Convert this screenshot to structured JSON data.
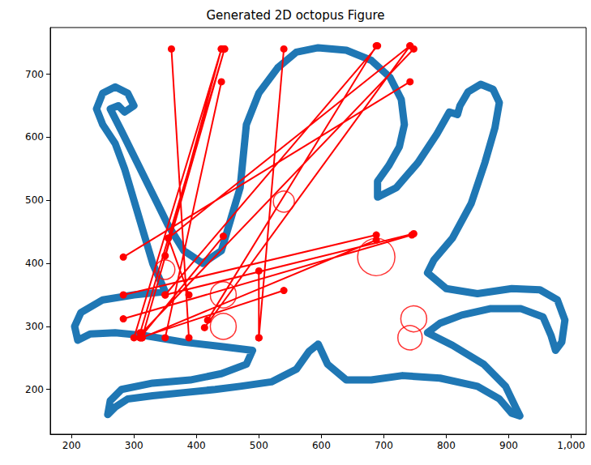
{
  "chart_data": {
    "type": "scatter",
    "title": "Generated 2D octopus Figure",
    "xlim": [
      166,
      1024
    ],
    "ylim": [
      129,
      774
    ],
    "xticks": [
      200,
      300,
      400,
      500,
      600,
      700,
      800,
      900,
      1000
    ],
    "yticks": [
      200,
      300,
      400,
      500,
      600,
      700
    ],
    "grid": false,
    "series": [
      {
        "type": "line",
        "color": "#1f77b4",
        "marker": "none",
        "line_style": "solid",
        "x": [
          595,
          640,
          680,
          710,
          728,
          733,
          725,
          708,
          690,
          690,
          720,
          755,
          785,
          805,
          818,
          822,
          835,
          855,
          875,
          885,
          878,
          862,
          840,
          810,
          780,
          770,
          800,
          850,
          905,
          950,
          978,
          990,
          985,
          975,
          968,
          955,
          920,
          870,
          825,
          790,
          770,
          810,
          860,
          895,
          912,
          918,
          905,
          885,
          850,
          790,
          730,
          680,
          640,
          610,
          595,
          580,
          560,
          520,
          470,
          430,
          380,
          330,
          290,
          270,
          258,
          262,
          280,
          330,
          390,
          440,
          480,
          490,
          440,
          380,
          320,
          270,
          230,
          210,
          205,
          215,
          250,
          300,
          350,
          330,
          315,
          300,
          285,
          270,
          250,
          240,
          250,
          270,
          290,
          300,
          285,
          275,
          262,
          280,
          305,
          330,
          355,
          380,
          410,
          440,
          455,
          470,
          475,
          480,
          500,
          530,
          560,
          595
        ],
        "y": [
          742,
          738,
          722,
          695,
          660,
          620,
          585,
          555,
          530,
          505,
          520,
          560,
          605,
          640,
          636,
          650,
          672,
          684,
          676,
          655,
          615,
          560,
          495,
          440,
          405,
          385,
          360,
          352,
          360,
          358,
          342,
          310,
          275,
          262,
          285,
          315,
          328,
          328,
          318,
          305,
          290,
          270,
          240,
          205,
          170,
          158,
          162,
          185,
          205,
          218,
          222,
          215,
          215,
          240,
          272,
          260,
          232,
          212,
          205,
          200,
          195,
          190,
          185,
          172,
          160,
          182,
          200,
          210,
          215,
          225,
          240,
          262,
          268,
          275,
          285,
          290,
          288,
          278,
          300,
          322,
          342,
          350,
          355,
          400,
          450,
          500,
          550,
          590,
          620,
          645,
          670,
          680,
          670,
          650,
          640,
          650,
          645,
          610,
          560,
          510,
          460,
          420,
          400,
          420,
          470,
          520,
          570,
          620,
          670,
          710,
          735,
          742
        ]
      },
      {
        "type": "line",
        "color": "red",
        "marker": "circle",
        "line_style": "solid",
        "segments": [
          [
            360,
            740,
            388,
            282
          ],
          [
            440,
            740,
            300,
            282
          ],
          [
            445,
            740,
            313,
            282
          ],
          [
            440,
            688,
            350,
            282
          ],
          [
            445,
            740,
            310,
            290
          ],
          [
            440,
            740,
            350,
            412
          ],
          [
            540,
            740,
            500,
            282
          ],
          [
            688,
            745,
            418,
            310
          ],
          [
            742,
            745,
            413,
            298
          ],
          [
            748,
            740,
            313,
            290
          ],
          [
            742,
            688,
            283,
            410
          ],
          [
            690,
            745,
            350,
            350
          ],
          [
            688,
            445,
            283,
            350
          ],
          [
            745,
            445,
            283,
            312
          ],
          [
            748,
            447,
            350,
            350
          ],
          [
            688,
            437,
            313,
            282
          ],
          [
            443,
            443,
            310,
            282
          ],
          [
            355,
            440,
            388,
            350
          ],
          [
            500,
            388,
            500,
            282
          ],
          [
            540,
            357,
            310,
            282
          ],
          [
            742,
            745,
            355,
            440
          ]
        ]
      },
      {
        "type": "scatter",
        "color": "red",
        "marker": "open_circle",
        "x": [
          540,
          350,
          443,
          443,
          688,
          748,
          742
        ],
        "y": [
          498,
          390,
          350,
          300,
          410,
          312,
          282
        ],
        "sizes": [
          26,
          24,
          32,
          32,
          46,
          32,
          30
        ]
      }
    ]
  }
}
